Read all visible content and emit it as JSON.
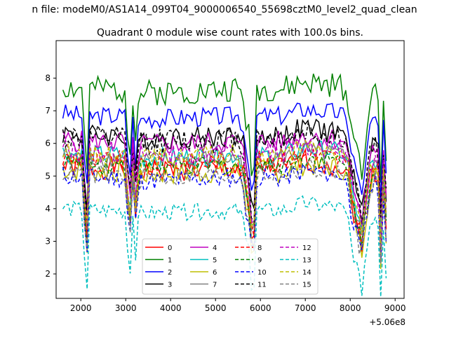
{
  "figure": {
    "suptitle": "n file: modeM0/AS1A14_099T04_9000006540_55698cztM0_level2_quad_clean"
  },
  "chart_data": {
    "type": "line",
    "title": "Quadrant 0 module wise count rates with 100.0s bins.",
    "xlabel": "",
    "ylabel": "",
    "x_offset_label": "+5.06e8",
    "xlim": [
      1450,
      9200
    ],
    "ylim": [
      1.25,
      9.15
    ],
    "xticks": [
      2000,
      3000,
      4000,
      5000,
      6000,
      7000,
      8000,
      9000
    ],
    "yticks": [
      2,
      3,
      4,
      5,
      6,
      7,
      8
    ],
    "legend_location": "lower center",
    "legend_columns": 4,
    "grid": false,
    "series_keys": [
      [
        1600,
        6.0
      ],
      [
        2050,
        5.8
      ],
      [
        2120,
        2.6
      ],
      [
        2200,
        5.8
      ],
      [
        3000,
        5.8
      ],
      [
        3080,
        3.4
      ],
      [
        3150,
        5.6
      ],
      [
        3240,
        4.0
      ],
      [
        3320,
        5.6
      ],
      [
        4500,
        5.7
      ],
      [
        5500,
        5.8
      ],
      [
        5760,
        4.3
      ],
      [
        5840,
        2.7
      ],
      [
        5920,
        5.8
      ],
      [
        6500,
        5.8
      ],
      [
        7000,
        6.3
      ],
      [
        7150,
        6.2
      ],
      [
        7800,
        6.0
      ],
      [
        8150,
        4.0
      ],
      [
        8250,
        3.2
      ],
      [
        8350,
        4.5
      ],
      [
        8500,
        5.3
      ],
      [
        8600,
        5.6
      ],
      [
        8680,
        3.0
      ],
      [
        8760,
        5.5
      ],
      [
        8840,
        2.2
      ]
    ],
    "series": [
      {
        "name": "0",
        "color": "#ff0000",
        "dash": "solid",
        "mean": 5.2,
        "amp": 0.35,
        "seed": 1
      },
      {
        "name": "1",
        "color": "#008000",
        "dash": "solid",
        "mean": 7.6,
        "amp": 0.4,
        "seed": 2
      },
      {
        "name": "2",
        "color": "#0000ff",
        "dash": "solid",
        "mean": 6.8,
        "amp": 0.3,
        "seed": 3
      },
      {
        "name": "3",
        "color": "#000000",
        "dash": "solid",
        "mean": 6.2,
        "amp": 0.35,
        "seed": 4
      },
      {
        "name": "4",
        "color": "#bf00bf",
        "dash": "solid",
        "mean": 6.0,
        "amp": 0.35,
        "seed": 5
      },
      {
        "name": "5",
        "color": "#00bfbf",
        "dash": "solid",
        "mean": 5.6,
        "amp": 0.3,
        "seed": 6
      },
      {
        "name": "6",
        "color": "#bfbf00",
        "dash": "solid",
        "mean": 5.1,
        "amp": 0.35,
        "seed": 7
      },
      {
        "name": "7",
        "color": "#808080",
        "dash": "solid",
        "mean": 5.5,
        "amp": 0.3,
        "seed": 8
      },
      {
        "name": "8",
        "color": "#ff0000",
        "dash": "dashed",
        "mean": 5.4,
        "amp": 0.35,
        "seed": 9
      },
      {
        "name": "9",
        "color": "#008000",
        "dash": "dashed",
        "mean": 5.3,
        "amp": 0.3,
        "seed": 10
      },
      {
        "name": "10",
        "color": "#0000ff",
        "dash": "dashed",
        "mean": 4.9,
        "amp": 0.3,
        "seed": 11
      },
      {
        "name": "11",
        "color": "#000000",
        "dash": "dashed",
        "mean": 6.1,
        "amp": 0.4,
        "seed": 12
      },
      {
        "name": "12",
        "color": "#bf00bf",
        "dash": "dashed",
        "mean": 5.7,
        "amp": 0.35,
        "seed": 13
      },
      {
        "name": "13",
        "color": "#00bfbf",
        "dash": "dashed",
        "mean": 3.9,
        "amp": 0.25,
        "seed": 14
      },
      {
        "name": "14",
        "color": "#bfbf00",
        "dash": "dashed",
        "mean": 5.6,
        "amp": 0.3,
        "seed": 15
      },
      {
        "name": "15",
        "color": "#808080",
        "dash": "dashed",
        "mean": 5.0,
        "amp": 0.3,
        "seed": 16
      }
    ]
  }
}
